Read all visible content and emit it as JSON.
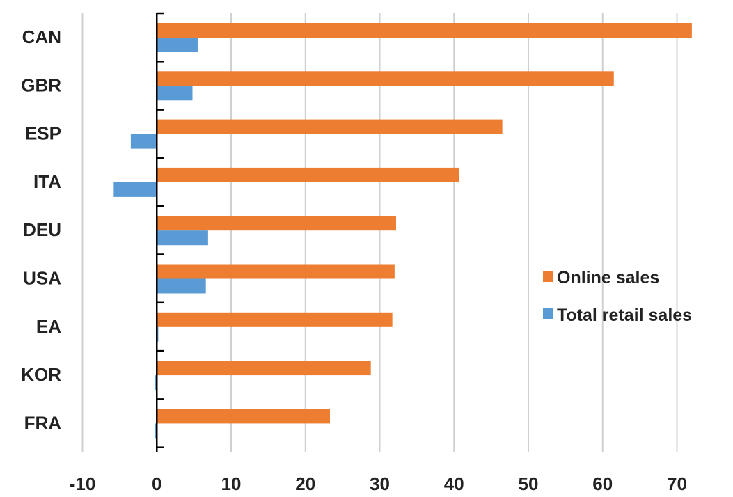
{
  "chart_data": {
    "type": "bar",
    "orientation": "horizontal",
    "categories": [
      "CAN",
      "GBR",
      "ESP",
      "ITA",
      "DEU",
      "USA",
      "EA",
      "KOR",
      "FRA"
    ],
    "series": [
      {
        "name": "Online sales",
        "color": "#ED7D31",
        "values": [
          72,
          61.5,
          46.5,
          40.7,
          32.2,
          32,
          31.7,
          28.8,
          23.3
        ]
      },
      {
        "name": "Total retail sales",
        "color": "#5B9BD5",
        "values": [
          5.5,
          4.8,
          -3.5,
          -5.8,
          6.9,
          6.6,
          0.2,
          -0.3,
          -0.3
        ]
      }
    ],
    "xlim": [
      -10,
      70
    ],
    "xticks": [
      "-10",
      "0",
      "10",
      "20",
      "30",
      "40",
      "50",
      "60",
      "70"
    ],
    "grid": true,
    "legend_position": "right"
  }
}
